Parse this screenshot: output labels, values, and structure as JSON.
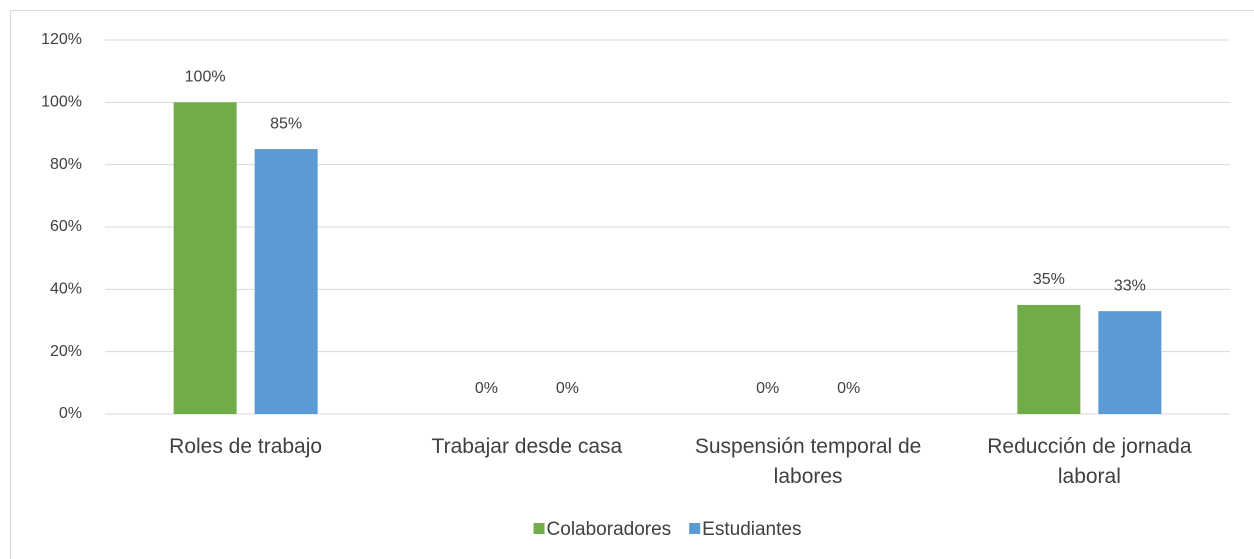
{
  "chart_data": {
    "type": "bar",
    "categories": [
      "Roles de trabajo",
      "Trabajar desde casa",
      "Suspensión temporal de labores",
      "Reducción de jornada laboral"
    ],
    "series": [
      {
        "name": "Colaboradores",
        "color": "#70ad47",
        "values": [
          100,
          0,
          0,
          35
        ],
        "value_labels": [
          "100%",
          "0%",
          "0%",
          "35%"
        ]
      },
      {
        "name": "Estudiantes",
        "color": "#5b9bd5",
        "values": [
          85,
          0,
          0,
          33
        ],
        "value_labels": [
          "85%",
          "0%",
          "0%",
          "33%"
        ]
      }
    ],
    "ylim": [
      0,
      120
    ],
    "yticks": [
      {
        "value": 0,
        "label": "0%"
      },
      {
        "value": 20,
        "label": "20%"
      },
      {
        "value": 40,
        "label": "40%"
      },
      {
        "value": 60,
        "label": "60%"
      },
      {
        "value": 80,
        "label": "80%"
      },
      {
        "value": 100,
        "label": "100%"
      },
      {
        "value": 120,
        "label": "120%"
      }
    ],
    "grid": true,
    "legend": "bottom"
  }
}
